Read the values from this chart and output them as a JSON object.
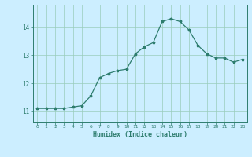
{
  "x": [
    0,
    1,
    2,
    3,
    4,
    5,
    6,
    7,
    8,
    9,
    10,
    11,
    12,
    13,
    14,
    15,
    16,
    17,
    18,
    19,
    20,
    21,
    22,
    23
  ],
  "y": [
    11.1,
    11.1,
    11.1,
    11.1,
    11.15,
    11.2,
    11.55,
    12.2,
    12.35,
    12.45,
    12.5,
    13.05,
    13.3,
    13.45,
    14.2,
    14.3,
    14.2,
    13.9,
    13.35,
    13.05,
    12.9,
    12.9,
    12.75,
    12.85
  ],
  "line_color": "#2e7d6e",
  "marker": "*",
  "marker_size": 2.5,
  "bg_color": "#cceeff",
  "grid_color": "#99ccbb",
  "axis_color": "#2e7d6e",
  "tick_color": "#2e7d6e",
  "xlabel": "Humidex (Indice chaleur)",
  "xlabel_fontsize": 6,
  "xlabel_color": "#2e7d6e",
  "yticks": [
    11,
    12,
    13,
    14
  ],
  "ylim": [
    10.6,
    14.8
  ],
  "xlim": [
    -0.5,
    23.5
  ],
  "xtick_labels": [
    "0",
    "1",
    "2",
    "3",
    "4",
    "5",
    "6",
    "7",
    "8",
    "9",
    "10",
    "11",
    "12",
    "13",
    "14",
    "15",
    "16",
    "17",
    "18",
    "19",
    "20",
    "21",
    "22",
    "23"
  ],
  "font_family": "monospace"
}
